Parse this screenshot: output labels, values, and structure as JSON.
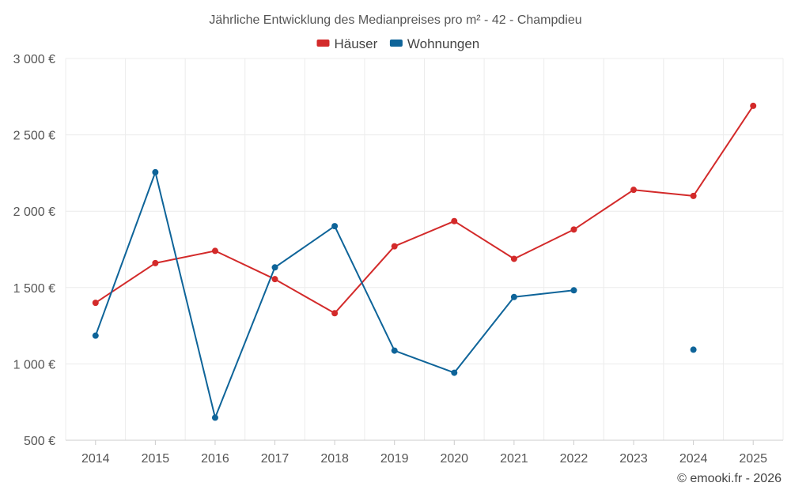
{
  "chart_data": {
    "type": "line",
    "title": "Jährliche Entwicklung des Medianpreises pro m² - 42 - Champdieu",
    "categories": [
      "2014",
      "2015",
      "2016",
      "2017",
      "2018",
      "2019",
      "2020",
      "2021",
      "2022",
      "2023",
      "2024",
      "2025"
    ],
    "series": [
      {
        "name": "Häuser",
        "color": "#d32a2a",
        "values": [
          1400,
          1660,
          1740,
          1555,
          1332,
          1770,
          1935,
          1688,
          1880,
          2140,
          2100,
          2690
        ]
      },
      {
        "name": "Wohnungen",
        "color": "#0e6499",
        "values": [
          1185,
          2255,
          648,
          1632,
          1902,
          1087,
          942,
          1438,
          1482,
          null,
          1093,
          null
        ]
      }
    ],
    "ylim": [
      500,
      3000
    ],
    "yticks": [
      500,
      1000,
      1500,
      2000,
      2500,
      3000
    ],
    "ytick_labels": [
      "500 €",
      "1 000 €",
      "1 500 €",
      "2 000 €",
      "2 500 €",
      "3 000 €"
    ],
    "xlabel": "",
    "ylabel": "",
    "grid": true,
    "legend_position": "top-center"
  },
  "credit": "© emooki.fr - 2026"
}
